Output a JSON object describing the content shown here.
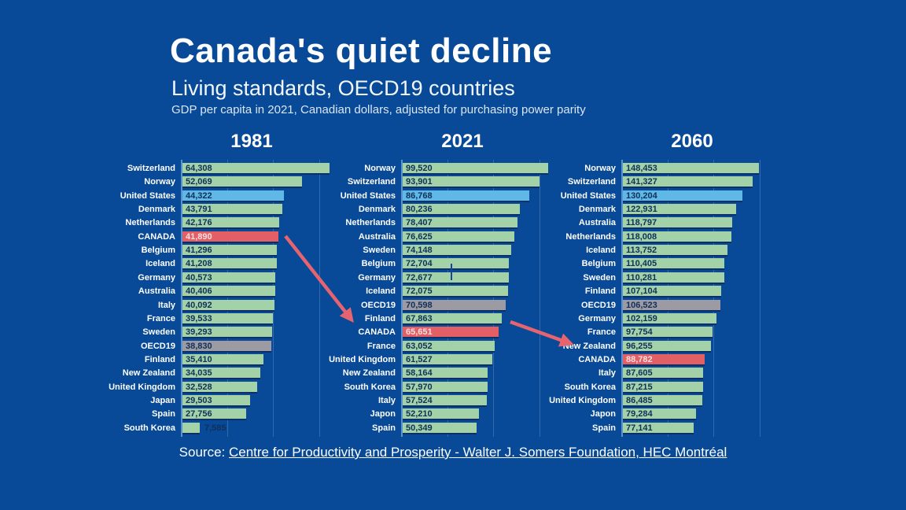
{
  "header": {
    "title": "Canada's quiet decline",
    "subtitle": "Living standards, OECD19 countries",
    "description": "GDP per capita in 2021, Canadian dollars, adjusted for purchasing power parity"
  },
  "source": {
    "prefix": "Source: ",
    "link_text": "Centre for Productivity and Prosperity - Walter J. Somers Foundation, HEC Montréal"
  },
  "colors": {
    "background": "#084a97",
    "bar_default": "#a4d2a8",
    "bar_us": "#5fb8e6",
    "bar_canada": "#e25f66",
    "bar_oecd": "#9c9aa2",
    "bar_edge": "#0c3066",
    "axis": "#5b93cf",
    "gridline": "rgba(173,205,240,0.25)",
    "arrow": "#e5646f",
    "value_text": "#10305a",
    "value_text_on_red": "#f6dfe1"
  },
  "chart_data": [
    {
      "type": "bar",
      "orientation": "horizontal",
      "title": "1981",
      "xmax": 67000,
      "bars": [
        {
          "label": "Switzerland",
          "value": 64308,
          "display": "64,308",
          "color_key": "default"
        },
        {
          "label": "Norway",
          "value": 52069,
          "display": "52,069",
          "color_key": "default"
        },
        {
          "label": "United States",
          "value": 44322,
          "display": "44,322",
          "color_key": "us"
        },
        {
          "label": "Denmark",
          "value": 43791,
          "display": "43,791",
          "color_key": "default"
        },
        {
          "label": "Netherlands",
          "value": 42176,
          "display": "42,176",
          "color_key": "default"
        },
        {
          "label": "CANADA",
          "value": 41890,
          "display": "41,890",
          "color_key": "canada"
        },
        {
          "label": "Belgium",
          "value": 41296,
          "display": "41,296",
          "color_key": "default"
        },
        {
          "label": "Iceland",
          "value": 41208,
          "display": "41,208",
          "color_key": "default"
        },
        {
          "label": "Germany",
          "value": 40573,
          "display": "40,573",
          "color_key": "default"
        },
        {
          "label": "Australia",
          "value": 40406,
          "display": "40,406",
          "color_key": "default"
        },
        {
          "label": "Italy",
          "value": 40092,
          "display": "40,092",
          "color_key": "default"
        },
        {
          "label": "France",
          "value": 39533,
          "display": "39,533",
          "color_key": "default"
        },
        {
          "label": "Sweden",
          "value": 39293,
          "display": "39,293",
          "color_key": "default"
        },
        {
          "label": "OECD19",
          "value": 38830,
          "display": "38,830",
          "color_key": "oecd"
        },
        {
          "label": "Finland",
          "value": 35410,
          "display": "35,410",
          "color_key": "default"
        },
        {
          "label": "New Zealand",
          "value": 34035,
          "display": "34,035",
          "color_key": "default"
        },
        {
          "label": "United Kingdom",
          "value": 32528,
          "display": "32,528",
          "color_key": "default"
        },
        {
          "label": "Japan",
          "value": 29503,
          "display": "29,503",
          "color_key": "default"
        },
        {
          "label": "Spain",
          "value": 27756,
          "display": "27,756",
          "color_key": "default"
        },
        {
          "label": "South Korea",
          "value": 7585,
          "display": "7,585",
          "color_key": "default"
        }
      ]
    },
    {
      "type": "bar",
      "orientation": "horizontal",
      "title": "2021",
      "xmax": 105000,
      "bars": [
        {
          "label": "Norway",
          "value": 99520,
          "display": "99,520",
          "color_key": "default"
        },
        {
          "label": "Switzerland",
          "value": 93901,
          "display": "93,901",
          "color_key": "default"
        },
        {
          "label": "United States",
          "value": 86768,
          "display": "86,768",
          "color_key": "us"
        },
        {
          "label": "Denmark",
          "value": 80236,
          "display": "80,236",
          "color_key": "default"
        },
        {
          "label": "Netherlands",
          "value": 78407,
          "display": "78,407",
          "color_key": "default"
        },
        {
          "label": "Australia",
          "value": 76625,
          "display": "76,625",
          "color_key": "default"
        },
        {
          "label": "Sweden",
          "value": 74148,
          "display": "74,148",
          "color_key": "default"
        },
        {
          "label": "Belgium",
          "value": 72704,
          "display": "72,704",
          "color_key": "default"
        },
        {
          "label": "Germany",
          "value": 72677,
          "display": "72,677",
          "color_key": "default"
        },
        {
          "label": "Iceland",
          "value": 72075,
          "display": "72,075",
          "color_key": "default"
        },
        {
          "label": "OECD19",
          "value": 70598,
          "display": "70,598",
          "color_key": "oecd"
        },
        {
          "label": "Finland",
          "value": 67863,
          "display": "67,863",
          "color_key": "default"
        },
        {
          "label": "CANADA",
          "value": 65651,
          "display": "65,651",
          "color_key": "canada"
        },
        {
          "label": "France",
          "value": 63052,
          "display": "63,052",
          "color_key": "default"
        },
        {
          "label": "United Kingdom",
          "value": 61527,
          "display": "61,527",
          "color_key": "default"
        },
        {
          "label": "New Zealand",
          "value": 58164,
          "display": "58,164",
          "color_key": "default"
        },
        {
          "label": "South Korea",
          "value": 57970,
          "display": "57,970",
          "color_key": "default"
        },
        {
          "label": "Italy",
          "value": 57524,
          "display": "57,524",
          "color_key": "default"
        },
        {
          "label": "Japon",
          "value": 52210,
          "display": "52,210",
          "color_key": "default"
        },
        {
          "label": "Spain",
          "value": 50349,
          "display": "50,349",
          "color_key": "default"
        }
      ]
    },
    {
      "type": "bar",
      "orientation": "horizontal",
      "title": "2060",
      "xmax": 167000,
      "bars": [
        {
          "label": "Norway",
          "value": 148453,
          "display": "148,453",
          "color_key": "default"
        },
        {
          "label": "Switzerland",
          "value": 141327,
          "display": "141,327",
          "color_key": "default"
        },
        {
          "label": "United States",
          "value": 130204,
          "display": "130,204",
          "color_key": "us"
        },
        {
          "label": "Denmark",
          "value": 122931,
          "display": "122,931",
          "color_key": "default"
        },
        {
          "label": "Australia",
          "value": 118797,
          "display": "118,797",
          "color_key": "default"
        },
        {
          "label": "Netherlands",
          "value": 118008,
          "display": "118,008",
          "color_key": "default"
        },
        {
          "label": "Iceland",
          "value": 113752,
          "display": "113,752",
          "color_key": "default"
        },
        {
          "label": "Belgium",
          "value": 110405,
          "display": "110,405",
          "color_key": "default"
        },
        {
          "label": "Sweden",
          "value": 110281,
          "display": "110,281",
          "color_key": "default"
        },
        {
          "label": "Finland",
          "value": 107104,
          "display": "107,104",
          "color_key": "default"
        },
        {
          "label": "OECD19",
          "value": 106523,
          "display": "106,523",
          "color_key": "oecd"
        },
        {
          "label": "Germany",
          "value": 102159,
          "display": "102,159",
          "color_key": "default"
        },
        {
          "label": "France",
          "value": 97754,
          "display": "97,754",
          "color_key": "default"
        },
        {
          "label": "New Zealand",
          "value": 96255,
          "display": "96,255",
          "color_key": "default"
        },
        {
          "label": "CANADA",
          "value": 88782,
          "display": "88,782",
          "color_key": "canada"
        },
        {
          "label": "Italy",
          "value": 87605,
          "display": "87,605",
          "color_key": "default"
        },
        {
          "label": "South Korea",
          "value": 87215,
          "display": "87,215",
          "color_key": "default"
        },
        {
          "label": "United Kingdom",
          "value": 86485,
          "display": "86,485",
          "color_key": "default"
        },
        {
          "label": "Japon",
          "value": 79284,
          "display": "79,284",
          "color_key": "default"
        },
        {
          "label": "Spain",
          "value": 77141,
          "display": "77,141",
          "color_key": "default"
        }
      ]
    }
  ]
}
